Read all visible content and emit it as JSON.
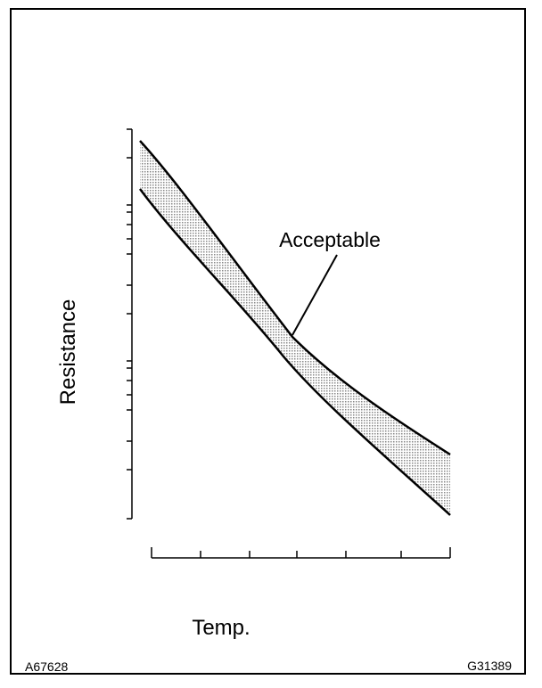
{
  "diagram": {
    "y_axis_label": "Resistance",
    "x_axis_label": "Temp.",
    "band_label": "Acceptable",
    "footer_left": "A67628",
    "footer_right": "G31389"
  }
}
